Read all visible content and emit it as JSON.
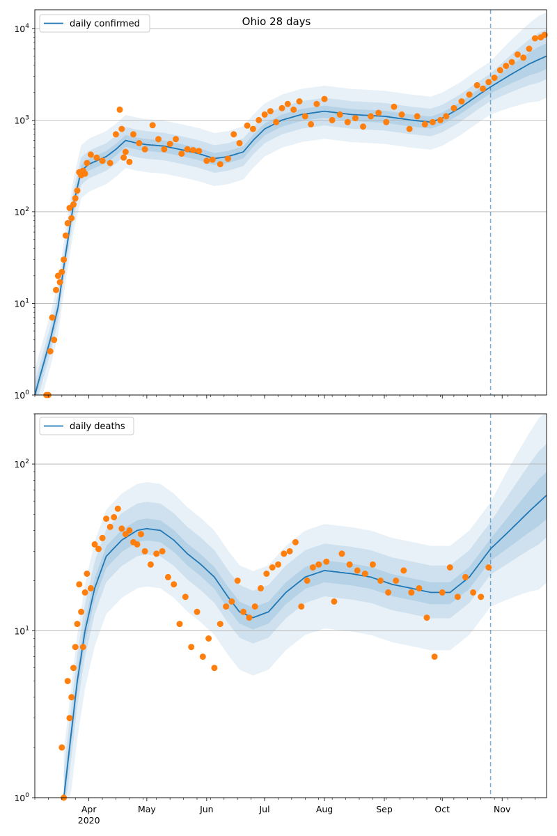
{
  "colors": {
    "line": "#1f77b4",
    "points": "#ff7f0e",
    "band": "#1f77b4",
    "grid": "#b0b0b0",
    "vline": "#1f77b4"
  },
  "chart_data": [
    {
      "type": "line",
      "title": "Ohio 28 days",
      "xlabel": "",
      "ylabel": "",
      "yscale": "log",
      "ylim": [
        1,
        16000
      ],
      "yticks": [
        1,
        10,
        100,
        1000,
        10000
      ],
      "ytick_labels": [
        [
          "10",
          "0"
        ],
        [
          "10",
          "1"
        ],
        [
          "10",
          "2"
        ],
        [
          "10",
          "3"
        ],
        [
          "10",
          "4"
        ]
      ],
      "xlim": [
        "2020-03-04",
        "2020-11-24"
      ],
      "xticks": [
        {
          "date": "2020-04-01",
          "label": "Apr",
          "sublabel": "2020"
        },
        {
          "date": "2020-05-01",
          "label": "May",
          "sublabel": ""
        },
        {
          "date": "2020-06-01",
          "label": "Jun",
          "sublabel": ""
        },
        {
          "date": "2020-07-01",
          "label": "Jul",
          "sublabel": ""
        },
        {
          "date": "2020-08-01",
          "label": "Aug",
          "sublabel": ""
        },
        {
          "date": "2020-09-01",
          "label": "Sep",
          "sublabel": ""
        },
        {
          "date": "2020-10-01",
          "label": "Oct",
          "sublabel": ""
        },
        {
          "date": "2020-11-01",
          "label": "Nov",
          "sublabel": ""
        }
      ],
      "grid": "horizontal",
      "legend": {
        "position": "top-left",
        "entries": [
          "daily confirmed"
        ]
      },
      "forecast_start": "2020-10-26",
      "fit_series": {
        "name": "daily confirmed",
        "x": [
          "2020-03-04",
          "2020-03-08",
          "2020-03-12",
          "2020-03-16",
          "2020-03-20",
          "2020-03-24",
          "2020-03-28",
          "2020-04-01",
          "2020-04-05",
          "2020-04-10",
          "2020-04-15",
          "2020-04-20",
          "2020-04-26",
          "2020-05-01",
          "2020-05-10",
          "2020-05-20",
          "2020-05-28",
          "2020-06-05",
          "2020-06-12",
          "2020-06-20",
          "2020-06-25",
          "2020-07-01",
          "2020-07-10",
          "2020-07-20",
          "2020-08-01",
          "2020-08-15",
          "2020-09-01",
          "2020-09-15",
          "2020-09-25",
          "2020-10-01",
          "2020-10-10",
          "2020-10-20",
          "2020-10-26",
          "2020-11-05",
          "2020-11-15",
          "2020-11-24"
        ],
        "values": [
          1,
          2,
          4,
          9,
          35,
          120,
          280,
          330,
          360,
          400,
          480,
          600,
          560,
          540,
          520,
          470,
          430,
          380,
          400,
          450,
          600,
          800,
          1000,
          1150,
          1250,
          1150,
          1100,
          1000,
          950,
          1050,
          1350,
          1900,
          2300,
          3100,
          4100,
          5000
        ]
      },
      "band_inner": {
        "lower_factor": 0.85,
        "upper_factor": 1.15
      },
      "band_mid": {
        "lower_factor": 0.7,
        "upper_factor": 1.4
      },
      "band_outer": {
        "lower_factor": 0.5,
        "upper_factor": 1.9
      },
      "band_outer_forecast": {
        "lower_factor": 0.35,
        "upper_factor": 3.0
      },
      "observed": {
        "x": [
          "2020-03-10",
          "2020-03-11",
          "2020-03-12",
          "2020-03-13",
          "2020-03-14",
          "2020-03-15",
          "2020-03-16",
          "2020-03-17",
          "2020-03-18",
          "2020-03-19",
          "2020-03-20",
          "2020-03-21",
          "2020-03-22",
          "2020-03-23",
          "2020-03-24",
          "2020-03-25",
          "2020-03-26",
          "2020-03-27",
          "2020-03-28",
          "2020-03-29",
          "2020-03-30",
          "2020-03-31",
          "2020-04-02",
          "2020-04-05",
          "2020-04-08",
          "2020-04-12",
          "2020-04-15",
          "2020-04-17",
          "2020-04-18",
          "2020-04-19",
          "2020-04-20",
          "2020-04-22",
          "2020-04-24",
          "2020-04-27",
          "2020-04-30",
          "2020-05-04",
          "2020-05-07",
          "2020-05-10",
          "2020-05-13",
          "2020-05-16",
          "2020-05-19",
          "2020-05-22",
          "2020-05-25",
          "2020-05-28",
          "2020-06-01",
          "2020-06-04",
          "2020-06-08",
          "2020-06-12",
          "2020-06-15",
          "2020-06-18",
          "2020-06-22",
          "2020-06-25",
          "2020-06-28",
          "2020-07-01",
          "2020-07-04",
          "2020-07-07",
          "2020-07-10",
          "2020-07-13",
          "2020-07-16",
          "2020-07-19",
          "2020-07-22",
          "2020-07-25",
          "2020-07-28",
          "2020-08-01",
          "2020-08-05",
          "2020-08-09",
          "2020-08-13",
          "2020-08-17",
          "2020-08-21",
          "2020-08-25",
          "2020-08-29",
          "2020-09-02",
          "2020-09-06",
          "2020-09-10",
          "2020-09-14",
          "2020-09-18",
          "2020-09-22",
          "2020-09-26",
          "2020-09-30",
          "2020-10-03",
          "2020-10-07",
          "2020-10-11",
          "2020-10-15",
          "2020-10-19",
          "2020-10-22",
          "2020-10-25",
          "2020-10-28",
          "2020-10-31",
          "2020-11-03",
          "2020-11-06",
          "2020-11-09",
          "2020-11-12",
          "2020-11-15",
          "2020-11-18",
          "2020-11-21",
          "2020-11-23"
        ],
        "values": [
          1,
          1,
          3,
          7,
          4,
          14,
          20,
          17,
          22,
          30,
          55,
          75,
          110,
          85,
          120,
          140,
          170,
          270,
          250,
          280,
          260,
          340,
          420,
          390,
          360,
          340,
          700,
          1300,
          800,
          390,
          450,
          350,
          700,
          560,
          480,
          880,
          620,
          480,
          550,
          620,
          430,
          480,
          470,
          460,
          360,
          370,
          330,
          380,
          700,
          560,
          870,
          800,
          1000,
          1150,
          1250,
          950,
          1350,
          1500,
          1300,
          1600,
          1100,
          900,
          1500,
          1700,
          1000,
          1150,
          950,
          1050,
          850,
          1100,
          1200,
          950,
          1400,
          1150,
          800,
          1100,
          900,
          950,
          1000,
          1100,
          1350,
          1600,
          1900,
          2400,
          2200,
          2600,
          2900,
          3500,
          3900,
          4300,
          5200,
          4800,
          6000,
          7800,
          8000,
          8500
        ]
      }
    },
    {
      "type": "line",
      "title": "",
      "xlabel": "",
      "ylabel": "",
      "yscale": "log",
      "ylim": [
        1,
        200
      ],
      "yticks": [
        1,
        10,
        100
      ],
      "ytick_labels": [
        [
          "10",
          "0"
        ],
        [
          "10",
          "1"
        ],
        [
          "10",
          "2"
        ]
      ],
      "xlim": [
        "2020-03-04",
        "2020-11-24"
      ],
      "xticks": [
        {
          "date": "2020-04-01",
          "label": "Apr",
          "sublabel": "2020"
        },
        {
          "date": "2020-05-01",
          "label": "May",
          "sublabel": ""
        },
        {
          "date": "2020-06-01",
          "label": "Jun",
          "sublabel": ""
        },
        {
          "date": "2020-07-01",
          "label": "Jul",
          "sublabel": ""
        },
        {
          "date": "2020-08-01",
          "label": "Aug",
          "sublabel": ""
        },
        {
          "date": "2020-09-01",
          "label": "Sep",
          "sublabel": ""
        },
        {
          "date": "2020-10-01",
          "label": "Oct",
          "sublabel": ""
        },
        {
          "date": "2020-11-01",
          "label": "Nov",
          "sublabel": ""
        }
      ],
      "grid": "horizontal",
      "legend": {
        "position": "top-left",
        "entries": [
          "daily deaths"
        ]
      },
      "forecast_start": "2020-10-26",
      "fit_series": {
        "name": "daily deaths",
        "x": [
          "2020-03-19",
          "2020-03-22",
          "2020-03-26",
          "2020-03-30",
          "2020-04-04",
          "2020-04-10",
          "2020-04-18",
          "2020-04-26",
          "2020-05-01",
          "2020-05-08",
          "2020-05-15",
          "2020-05-22",
          "2020-05-29",
          "2020-06-05",
          "2020-06-12",
          "2020-06-18",
          "2020-06-25",
          "2020-07-03",
          "2020-07-12",
          "2020-07-22",
          "2020-08-01",
          "2020-08-15",
          "2020-08-25",
          "2020-09-05",
          "2020-09-15",
          "2020-09-25",
          "2020-10-05",
          "2020-10-15",
          "2020-10-26",
          "2020-11-05",
          "2020-11-15",
          "2020-11-24"
        ],
        "values": [
          1,
          2,
          5,
          10,
          18,
          28,
          35,
          40,
          41,
          40,
          35,
          29,
          25,
          21,
          16,
          13,
          12,
          13,
          17,
          21,
          23,
          22,
          21,
          19,
          18,
          17,
          17,
          21,
          31,
          40,
          52,
          65
        ]
      },
      "band_inner": {
        "lower_factor": 0.85,
        "upper_factor": 1.15
      },
      "band_mid": {
        "lower_factor": 0.7,
        "upper_factor": 1.45
      },
      "band_outer": {
        "lower_factor": 0.45,
        "upper_factor": 1.9
      },
      "band_outer_forecast": {
        "lower_factor": 0.3,
        "upper_factor": 3.2
      },
      "observed": {
        "x": [
          "2020-03-18",
          "2020-03-19",
          "2020-03-21",
          "2020-03-22",
          "2020-03-23",
          "2020-03-24",
          "2020-03-25",
          "2020-03-26",
          "2020-03-27",
          "2020-03-28",
          "2020-03-29",
          "2020-03-30",
          "2020-03-31",
          "2020-04-02",
          "2020-04-04",
          "2020-04-06",
          "2020-04-08",
          "2020-04-10",
          "2020-04-12",
          "2020-04-14",
          "2020-04-16",
          "2020-04-18",
          "2020-04-20",
          "2020-04-22",
          "2020-04-24",
          "2020-04-26",
          "2020-04-28",
          "2020-04-30",
          "2020-05-03",
          "2020-05-06",
          "2020-05-09",
          "2020-05-12",
          "2020-05-15",
          "2020-05-18",
          "2020-05-21",
          "2020-05-24",
          "2020-05-27",
          "2020-05-30",
          "2020-06-02",
          "2020-06-05",
          "2020-06-08",
          "2020-06-11",
          "2020-06-14",
          "2020-06-17",
          "2020-06-20",
          "2020-06-23",
          "2020-06-26",
          "2020-06-29",
          "2020-07-02",
          "2020-07-05",
          "2020-07-08",
          "2020-07-11",
          "2020-07-14",
          "2020-07-17",
          "2020-07-20",
          "2020-07-23",
          "2020-07-26",
          "2020-07-29",
          "2020-08-02",
          "2020-08-06",
          "2020-08-10",
          "2020-08-14",
          "2020-08-18",
          "2020-08-22",
          "2020-08-26",
          "2020-08-30",
          "2020-09-03",
          "2020-09-07",
          "2020-09-11",
          "2020-09-15",
          "2020-09-19",
          "2020-09-23",
          "2020-09-27",
          "2020-10-01",
          "2020-10-05",
          "2020-10-09",
          "2020-10-13",
          "2020-10-17",
          "2020-10-21",
          "2020-10-25"
        ],
        "values": [
          2,
          1,
          5,
          3,
          4,
          6,
          8,
          11,
          19,
          13,
          8,
          17,
          22,
          18,
          33,
          31,
          36,
          47,
          42,
          48,
          54,
          41,
          38,
          40,
          34,
          33,
          38,
          30,
          25,
          29,
          30,
          21,
          19,
          11,
          16,
          8,
          13,
          7,
          9,
          6,
          11,
          14,
          15,
          20,
          13,
          12,
          14,
          18,
          22,
          24,
          25,
          29,
          30,
          34,
          14,
          20,
          24,
          25,
          26,
          15,
          29,
          25,
          23,
          22,
          25,
          20,
          17,
          20,
          23,
          17,
          18,
          12,
          7,
          17,
          24,
          16,
          21,
          17,
          16,
          24
        ]
      }
    }
  ]
}
